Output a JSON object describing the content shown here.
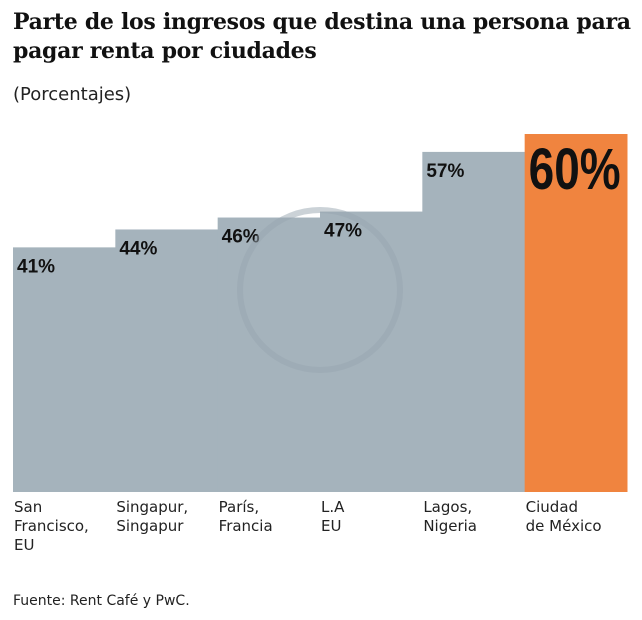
{
  "chart_data": {
    "type": "bar",
    "title": "Parte de los ingresos que destina una persona para pagar renta por ciudades",
    "subtitle": "(Porcentajes)",
    "categories": [
      "San Francisco, EU",
      "Singapur, Singapur",
      "París, Francia",
      "L.A EU",
      "Lagos, Nigeria",
      "Ciudad de México"
    ],
    "category_lines": [
      [
        "San",
        "Francisco,",
        "EU"
      ],
      [
        "Singapur,",
        "Singapur"
      ],
      [
        "París,",
        "Francia"
      ],
      [
        "L.A",
        "EU"
      ],
      [
        "Lagos,",
        "Nigeria"
      ],
      [
        "Ciudad",
        "de México"
      ]
    ],
    "values": [
      41,
      44,
      46,
      47,
      57,
      60
    ],
    "labels": [
      "41%",
      "44%",
      "46%",
      "47%",
      "57%",
      "60%"
    ],
    "ylim": [
      0,
      60
    ],
    "grid": false,
    "colors": {
      "default": "#a5b3bc",
      "highlight": "#f0843f"
    },
    "highlight_index": 5
  },
  "source": "Fuente: Rent Café y PwC."
}
